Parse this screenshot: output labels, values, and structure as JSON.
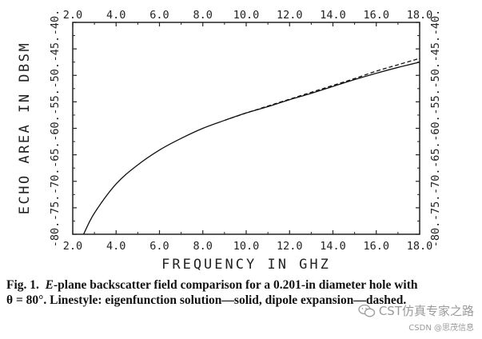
{
  "chart_data": {
    "type": "line",
    "xlabel": "FREQUENCY IN GHZ",
    "ylabel": "ECHO AREA IN DBSM",
    "xlim": [
      2.0,
      18.0
    ],
    "ylim": [
      -80,
      -40
    ],
    "x_ticks": [
      "2.0",
      "4.0",
      "6.0",
      "8.0",
      "10.0",
      "12.0",
      "14.0",
      "16.0",
      "18.0"
    ],
    "y_ticks": [
      "-40.",
      "-45.",
      "-50.",
      "-55.",
      "-60.",
      "-65.",
      "-70.",
      "-75.",
      "-80."
    ],
    "grid": false,
    "series": [
      {
        "style": "solid",
        "x": [
          2.5,
          3.0,
          4.0,
          5.0,
          6.0,
          7.0,
          8.0,
          9.0,
          10.0,
          11.0,
          12.0,
          13.0,
          14.0,
          15.0,
          16.0,
          17.0,
          18.0
        ],
        "y": [
          -80.0,
          -76.0,
          -70.5,
          -66.9,
          -64.1,
          -61.9,
          -60.0,
          -58.5,
          -57.1,
          -55.9,
          -54.6,
          -53.4,
          -52.1,
          -50.8,
          -49.6,
          -48.5,
          -47.5
        ]
      },
      {
        "style": "dashed",
        "x": [
          9.0,
          10.0,
          11.0,
          12.0,
          13.0,
          14.0,
          15.0,
          16.0,
          17.0,
          18.0
        ],
        "y": [
          -58.5,
          -57.1,
          -55.8,
          -54.5,
          -53.2,
          -51.9,
          -50.6,
          -49.2,
          -48.0,
          -46.8
        ]
      }
    ]
  },
  "caption": {
    "fig_label": "Fig. 1.",
    "text_italic": "E",
    "text_main": "-plane backscatter field comparison for a 0.201-in diameter hole with θ = 80°. Linestyle: eigenfunction solution—solid, dipole expansion—dashed."
  },
  "watermark": {
    "main": "CST仿真专家之路",
    "sub": "CSDN @思茂信息"
  }
}
